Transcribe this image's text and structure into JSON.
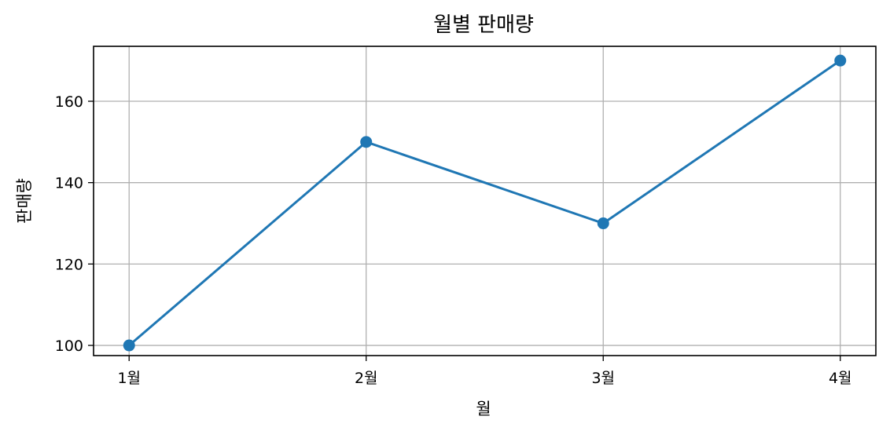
{
  "chart_data": {
    "type": "line",
    "title": "월별 판매량",
    "xlabel": "월",
    "ylabel": "판매량",
    "categories": [
      "1월",
      "2월",
      "3월",
      "4월"
    ],
    "series": [
      {
        "values": [
          100,
          150,
          130,
          170
        ],
        "color": "#1f77b4",
        "marker": "circle"
      }
    ],
    "ylim": [
      97.5,
      173.5
    ],
    "yticks": [
      100,
      120,
      140,
      160
    ],
    "ytick_labels": [
      "100",
      "120",
      "140",
      "160"
    ],
    "grid": true,
    "legend": false
  }
}
